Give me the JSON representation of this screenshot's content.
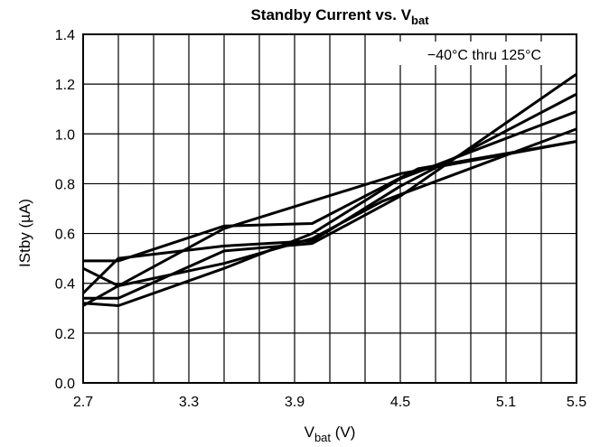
{
  "chart_data": {
    "type": "line",
    "title": {
      "main": "Standby Current vs. V",
      "sub": "bat"
    },
    "xlabel": {
      "main": "V",
      "sub": "bat",
      "unit": " (V)"
    },
    "ylabel": "IStby (µA)",
    "annotation": "−40°C thru 125°C",
    "xlim": [
      2.7,
      5.5
    ],
    "ylim": [
      0.0,
      1.4
    ],
    "x_ticks": [
      "2.7",
      "3.3",
      "3.9",
      "4.5",
      "5.1",
      "5.5"
    ],
    "y_ticks": [
      "0.0",
      "0.2",
      "0.4",
      "0.6",
      "0.8",
      "1.0",
      "1.2",
      "1.4"
    ],
    "x_tick_values": [
      2.7,
      3.3,
      3.9,
      4.5,
      5.1,
      5.5
    ],
    "y_tick_values": [
      0.0,
      0.2,
      0.4,
      0.6,
      0.8,
      1.0,
      1.2,
      1.4
    ],
    "x_minor_step": 0.2,
    "grid": true,
    "line_color": "#000000",
    "series": [
      {
        "points": [
          [
            2.7,
            0.49
          ],
          [
            2.9,
            0.49
          ],
          [
            3.5,
            0.63
          ],
          [
            4.0,
            0.64
          ],
          [
            4.6,
            0.86
          ],
          [
            5.5,
            0.97
          ]
        ]
      },
      {
        "points": [
          [
            2.7,
            0.46
          ],
          [
            2.9,
            0.39
          ],
          [
            3.5,
            0.48
          ],
          [
            4.0,
            0.58
          ],
          [
            4.4,
            0.73
          ],
          [
            5.5,
            1.02
          ]
        ]
      },
      {
        "points": [
          [
            2.7,
            0.32
          ],
          [
            2.9,
            0.31
          ],
          [
            3.5,
            0.46
          ],
          [
            4.0,
            0.6
          ],
          [
            4.5,
            0.82
          ],
          [
            5.5,
            1.09
          ]
        ]
      },
      {
        "points": [
          [
            2.7,
            0.36
          ],
          [
            2.9,
            0.5
          ],
          [
            3.5,
            0.55
          ],
          [
            4.0,
            0.57
          ],
          [
            4.5,
            0.79
          ],
          [
            5.5,
            1.16
          ]
        ]
      },
      {
        "points": [
          [
            2.7,
            0.34
          ],
          [
            2.9,
            0.34
          ],
          [
            3.5,
            0.53
          ],
          [
            4.0,
            0.56
          ],
          [
            4.5,
            0.75
          ],
          [
            5.5,
            1.24
          ]
        ]
      },
      {
        "points": [
          [
            2.7,
            0.31
          ],
          [
            2.9,
            0.39
          ],
          [
            3.5,
            0.62
          ],
          [
            4.0,
            0.73
          ],
          [
            4.5,
            0.84
          ],
          [
            5.5,
            0.97
          ]
        ]
      }
    ]
  }
}
